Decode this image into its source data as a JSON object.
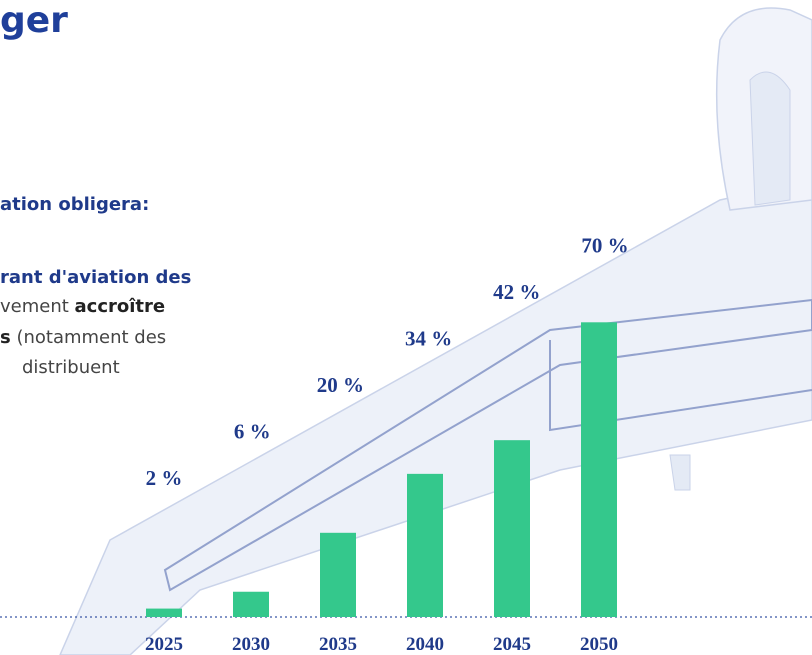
{
  "chart_data": {
    "type": "bar",
    "title": "ger",
    "subtitle": "ation obligera:",
    "annotations": [
      {
        "runs": [
          {
            "text": "rant d'aviation des",
            "bold": true
          }
        ]
      },
      {
        "runs": [
          {
            "text": "vement "
          },
          {
            "text": "accroître",
            "bold": true
          }
        ]
      },
      {
        "runs": [
          {
            "text": "s",
            "bold": true
          },
          {
            "text": " (notamment des"
          }
        ]
      },
      {
        "runs": [
          {
            "text": "distribuent"
          }
        ]
      }
    ],
    "categories": [
      "2025",
      "2030",
      "2035",
      "2040",
      "2045",
      "2050"
    ],
    "values": [
      2,
      6,
      20,
      34,
      42,
      70
    ],
    "value_labels": [
      "2 %",
      "6 %",
      "20 %",
      "34 %",
      "42 %",
      "70 %"
    ],
    "color": "#34c88c"
  }
}
